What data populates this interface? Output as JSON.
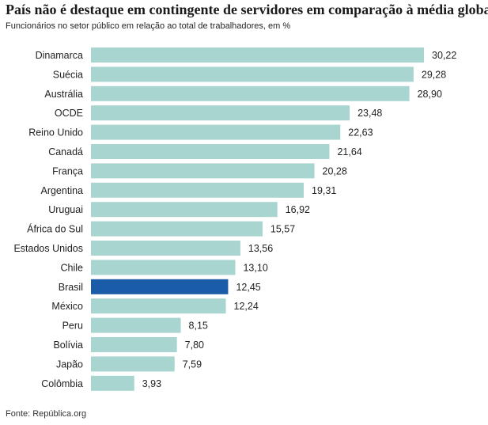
{
  "title": "País não é destaque em contingente de servidores em comparação à média global",
  "subtitle": "Funcionários no setor público em relação ao total de trabalhadores, em %",
  "source": "Fonte: República.org",
  "colors": {
    "bar": "#a8d5cf",
    "highlight": "#1a5ca8"
  },
  "chart_data": {
    "type": "bar",
    "orientation": "horizontal",
    "categories": [
      "Dinamarca",
      "Suécia",
      "Austrália",
      "OCDE",
      "Reino Unido",
      "Canadá",
      "França",
      "Argentina",
      "Uruguai",
      "África do Sul",
      "Estados Unidos",
      "Chile",
      "Brasil",
      "México",
      "Peru",
      "Bolívia",
      "Japão",
      "Colômbia"
    ],
    "values": [
      30.22,
      29.28,
      28.9,
      23.48,
      22.63,
      21.64,
      20.28,
      19.31,
      16.92,
      15.57,
      13.56,
      13.1,
      12.45,
      12.24,
      8.15,
      7.8,
      7.59,
      3.93
    ],
    "value_labels": [
      "30,22",
      "29,28",
      "28,90",
      "23,48",
      "22,63",
      "21,64",
      "20,28",
      "19,31",
      "16,92",
      "15,57",
      "13,56",
      "13,10",
      "12,45",
      "12,24",
      "8,15",
      "7,80",
      "7,59",
      "3,93"
    ],
    "highlight": "Brasil",
    "title": "País não é destaque em contingente de servidores em comparação à média global",
    "subtitle": "Funcionários no setor público em relação ao total de trabalhadores, em %",
    "xlim": [
      0,
      30.22
    ],
    "grid": false,
    "legend": "none"
  }
}
